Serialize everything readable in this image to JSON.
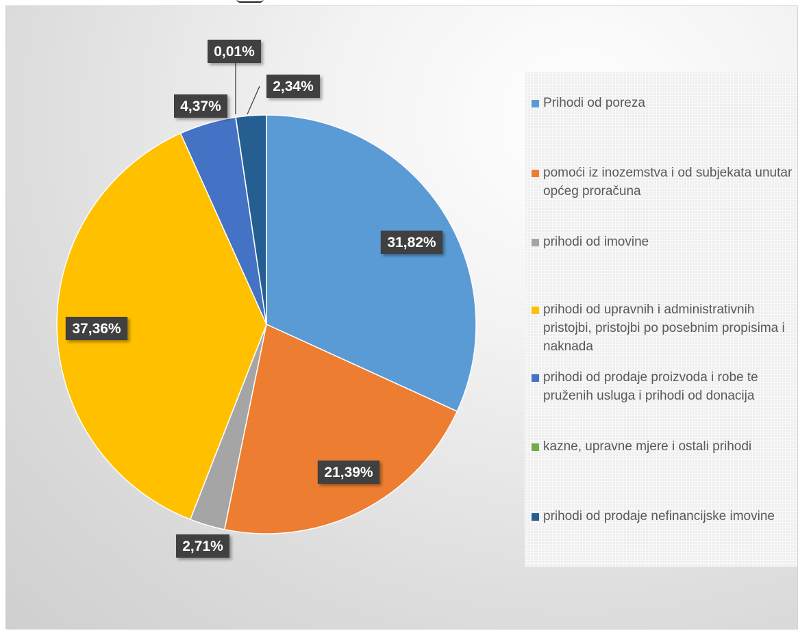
{
  "chart_data": {
    "type": "pie",
    "slices": [
      {
        "label": "Prihodi od poreza",
        "value": 31.82,
        "value_label": "31,82%",
        "color": "#5b9bd5"
      },
      {
        "label": "pomoći iz inozemstva i od subjekata unutar općeg proračuna",
        "value": 21.39,
        "value_label": "21,39%",
        "color": "#ed7d31"
      },
      {
        "label": "prihodi od imovine",
        "value": 2.71,
        "value_label": "2,71%",
        "color": "#a5a5a5"
      },
      {
        "label": "prihodi od upravnih i administrativnih pristojbi, pristojbi po posebnim propisima i naknada",
        "value": 37.36,
        "value_label": "37,36%",
        "color": "#ffc000"
      },
      {
        "label": "prihodi od prodaje proizvoda i robe te pruženih usluga i prihodi od donacija",
        "value": 4.37,
        "value_label": "4,37%",
        "color": "#4472c4"
      },
      {
        "label": "kazne, upravne mjere i ostali prihodi",
        "value": 0.01,
        "value_label": "0,01%",
        "color": "#70ad47"
      },
      {
        "label": "prihodi od prodaje nefinancijske imovine",
        "value": 2.34,
        "value_label": "2,34%",
        "color": "#255e91"
      }
    ],
    "legend_position": "right",
    "start": "12 o'clock, clockwise"
  }
}
